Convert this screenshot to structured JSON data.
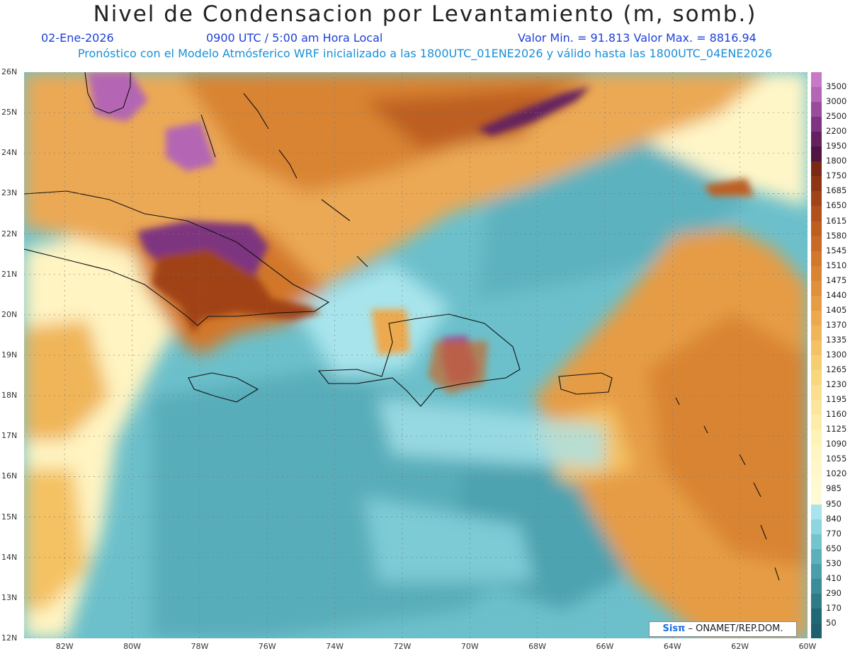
{
  "title": "Nivel de Condensacion por Levantamiento (m, somb.)",
  "date": "02-Ene-2026",
  "time": "0900 UTC / 5:00 am Hora Local",
  "min_max": "Valor Min. = 91.813  Valor Max. = 8816.94",
  "forecast": "Pronóstico con el Modelo Atmósferico WRF inicializado a las 1800UTC_01ENE2026 y válido hasta las  1800UTC_04ENE2026",
  "lat_labels": [
    "26N",
    "25N",
    "24N",
    "23N",
    "22N",
    "21N",
    "20N",
    "19N",
    "18N",
    "17N",
    "16N",
    "15N",
    "14N",
    "13N",
    "12N"
  ],
  "lon_labels": [
    "82W",
    "80W",
    "78W",
    "76W",
    "74W",
    "72W",
    "70W",
    "68W",
    "66W",
    "64W",
    "62W",
    "60W"
  ],
  "colorbar": {
    "labels": [
      "3500",
      "3000",
      "2500",
      "2200",
      "1950",
      "1800",
      "1750",
      "1685",
      "1650",
      "1615",
      "1580",
      "1545",
      "1510",
      "1475",
      "1440",
      "1405",
      "1370",
      "1335",
      "1300",
      "1265",
      "1230",
      "1195",
      "1160",
      "1125",
      "1090",
      "1055",
      "1020",
      "985",
      "950",
      "840",
      "770",
      "650",
      "530",
      "410",
      "290",
      "170",
      "50"
    ],
    "colors": [
      "#c679c6",
      "#b466b4",
      "#9a4c9a",
      "#7e3480",
      "#65215f",
      "#4e1640",
      "#7a2a14",
      "#8e3516",
      "#a04318",
      "#b0511c",
      "#bd5e20",
      "#c86a26",
      "#d2772c",
      "#d98432",
      "#e0903a",
      "#e69c44",
      "#eca94e",
      "#f0b558",
      "#f4c264",
      "#f7cd72",
      "#f9d680",
      "#fbdf8e",
      "#fce69c",
      "#fdeda9",
      "#fef2b6",
      "#fff5c0",
      "#fff7c8",
      "#fff9d0",
      "#fffad6",
      "#a8e4ec",
      "#8ed6df",
      "#74c4cd",
      "#5cb0bb",
      "#4a9ea9",
      "#3b8c98",
      "#2e7a87",
      "#216876"
    ],
    "below_color": "#1f5f6e"
  },
  "credit_logo": "Sisπ",
  "credit_text": " – ONAMET/REP.DOM."
}
